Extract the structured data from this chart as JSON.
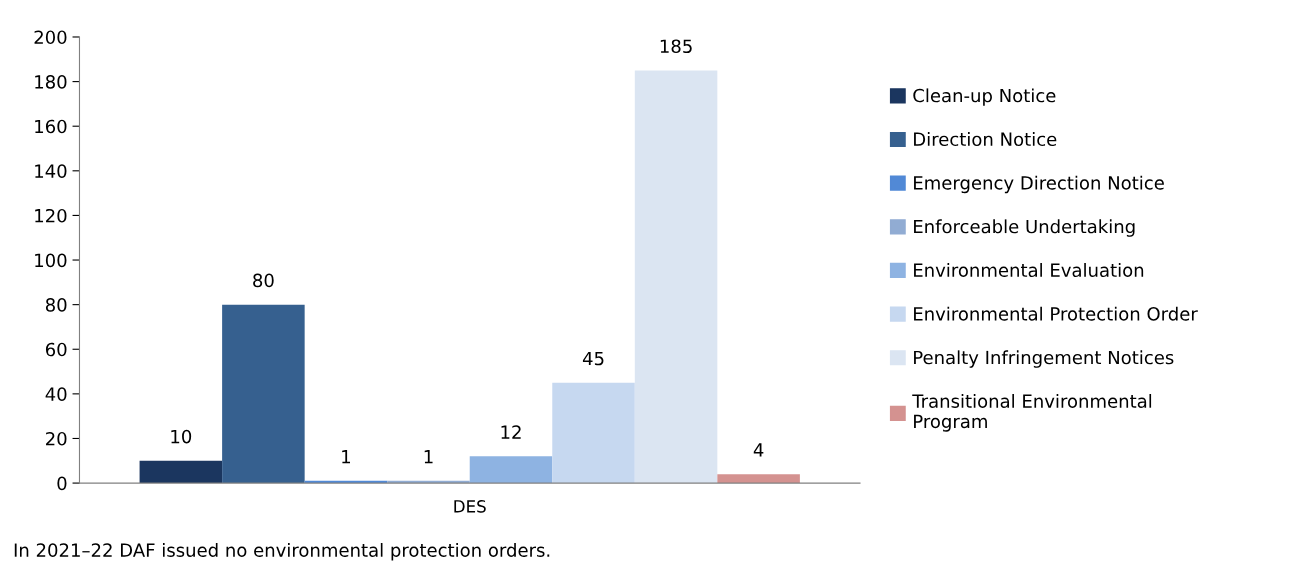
{
  "chart_data": {
    "type": "bar",
    "categories": [
      "DES"
    ],
    "series": [
      {
        "name": "Clean-up Notice",
        "color": "#1b365f",
        "values": [
          10
        ]
      },
      {
        "name": "Direction Notice",
        "color": "#36608f",
        "values": [
          80
        ]
      },
      {
        "name": "Emergency Direction Notice",
        "color": "#5189d6",
        "values": [
          1
        ]
      },
      {
        "name": "Enforceable Undertaking",
        "color": "#91acd3",
        "values": [
          1
        ]
      },
      {
        "name": "Environmental Evaluation",
        "color": "#8eb3e2",
        "values": [
          12
        ]
      },
      {
        "name": "Environmental Protection Order",
        "color": "#c6d8f0",
        "values": [
          45
        ]
      },
      {
        "name": "Penalty Infringement Notices",
        "color": "#dbe5f2",
        "values": [
          185
        ]
      },
      {
        "name": "Transitional Environmental\nProgram",
        "color": "#d49290",
        "values": [
          4
        ]
      }
    ],
    "ylim": [
      0,
      200
    ],
    "yticks": [
      0,
      20,
      40,
      60,
      80,
      100,
      120,
      140,
      160,
      180,
      200
    ],
    "data_labels": true,
    "legend": "right",
    "grid": false,
    "annotations": [
      "In 2021–22 DAF issued no environmental protection orders."
    ]
  }
}
